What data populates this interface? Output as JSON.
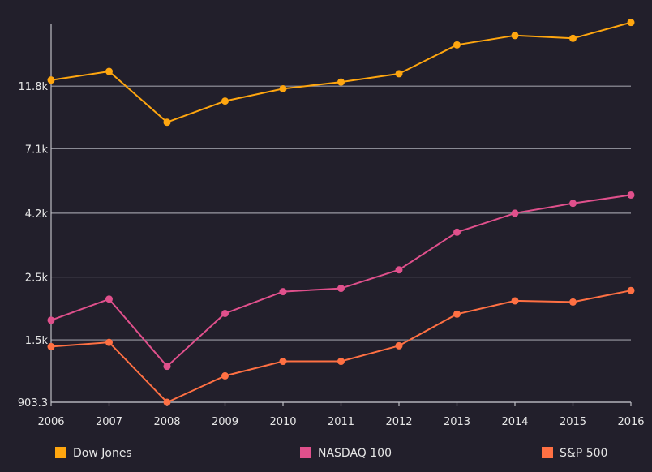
{
  "chart_data": {
    "type": "line",
    "title": "",
    "xlabel": "",
    "ylabel": "",
    "y_scale": "log",
    "x": [
      "2006",
      "2007",
      "2008",
      "2009",
      "2010",
      "2011",
      "2012",
      "2013",
      "2014",
      "2015",
      "2016"
    ],
    "y_ticks": [
      {
        "value": 903.3,
        "label": "903.3"
      },
      {
        "value": 1500,
        "label": "1.5k"
      },
      {
        "value": 2500,
        "label": "2.5k"
      },
      {
        "value": 4200,
        "label": "4.2k"
      },
      {
        "value": 7100,
        "label": "7.1k"
      },
      {
        "value": 11800,
        "label": "11.8k"
      }
    ],
    "ylim": [
      903.3,
      19500
    ],
    "grid": true,
    "legend_position": "bottom",
    "series": [
      {
        "name": "Dow Jones",
        "color": "#ffa60f",
        "values": [
          12400,
          13300,
          8800,
          10450,
          11550,
          12200,
          13050,
          16500,
          17800,
          17400,
          19800
        ]
      },
      {
        "name": "NASDAQ 100",
        "color": "#e0508c",
        "values": [
          1760,
          2090,
          1210,
          1860,
          2220,
          2280,
          2650,
          3600,
          4200,
          4550,
          4870
        ]
      },
      {
        "name": "S&P 500",
        "color": "#ff7043",
        "values": [
          1420,
          1470,
          903,
          1120,
          1260,
          1260,
          1430,
          1850,
          2060,
          2040,
          2240
        ]
      }
    ]
  }
}
